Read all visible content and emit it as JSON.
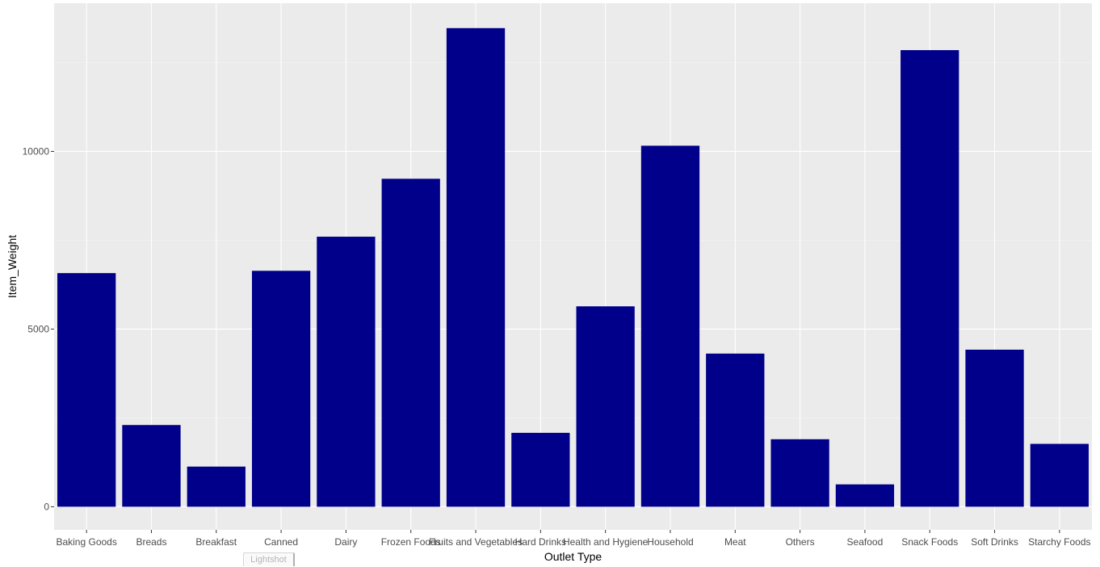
{
  "chart_data": {
    "type": "bar",
    "title": "",
    "xlabel": "Outlet Type",
    "ylabel": "Item_Weight",
    "categories": [
      "Baking Goods",
      "Breads",
      "Breakfast",
      "Canned",
      "Dairy",
      "Frozen Foods",
      "Fruits and Vegetables",
      "Hard Drinks",
      "Health and Hygiene",
      "Household",
      "Meat",
      "Others",
      "Seafood",
      "Snack Foods",
      "Soft Drinks",
      "Starchy Foods"
    ],
    "values": [
      6575,
      2300,
      1130,
      6640,
      7600,
      9230,
      13470,
      2080,
      5640,
      10160,
      4310,
      1900,
      630,
      12850,
      4420,
      1770
    ],
    "ylim": [
      -650,
      14170
    ],
    "y_ticks": [
      0,
      5000,
      10000
    ],
    "y_tick_labels": [
      "0",
      "5000",
      "10000"
    ],
    "grid": true,
    "legend": "none",
    "colors": {
      "bar": "#00008B",
      "panel_background": "#EBEBEB",
      "grid_major": "#FFFFFF",
      "grid_minor": "#F5F5F5",
      "tick_text": "#4D4D4D",
      "axis_title": "#000000"
    }
  },
  "overlay": {
    "watermark_label": "Lightshot"
  }
}
